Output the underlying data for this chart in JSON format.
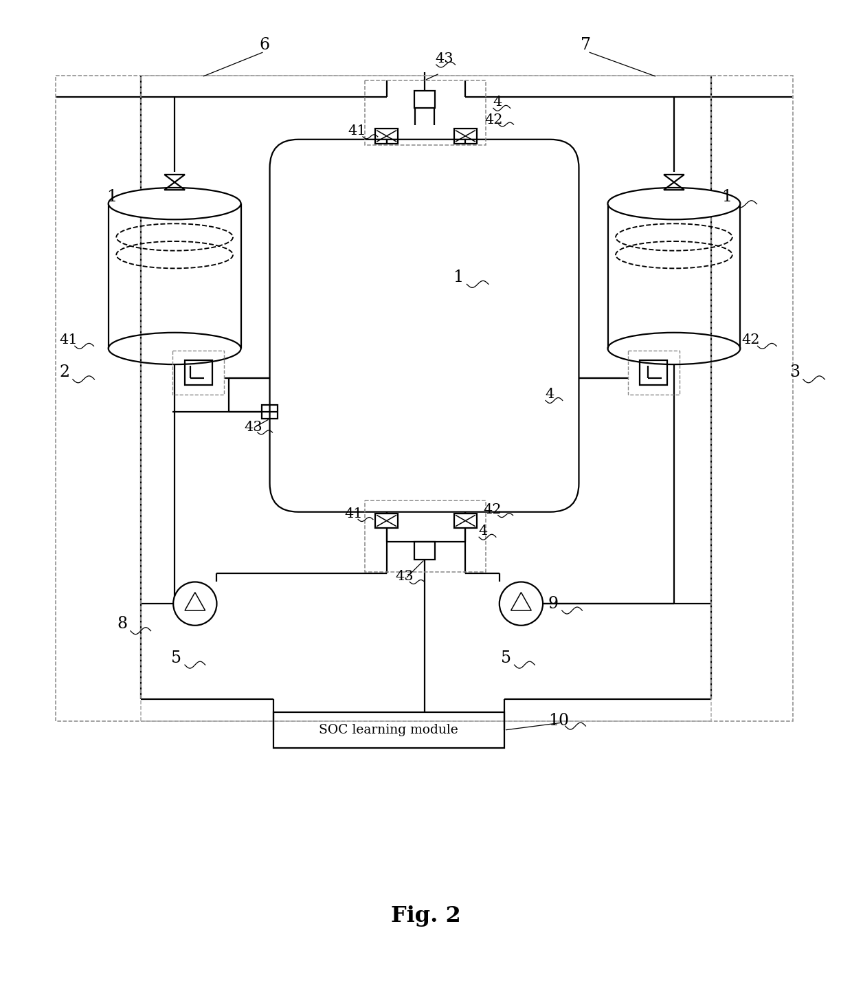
{
  "fig_label": "Fig. 2",
  "soc_label": "SOC learning module",
  "lc": "#000000",
  "dc": "#aaaaaa"
}
